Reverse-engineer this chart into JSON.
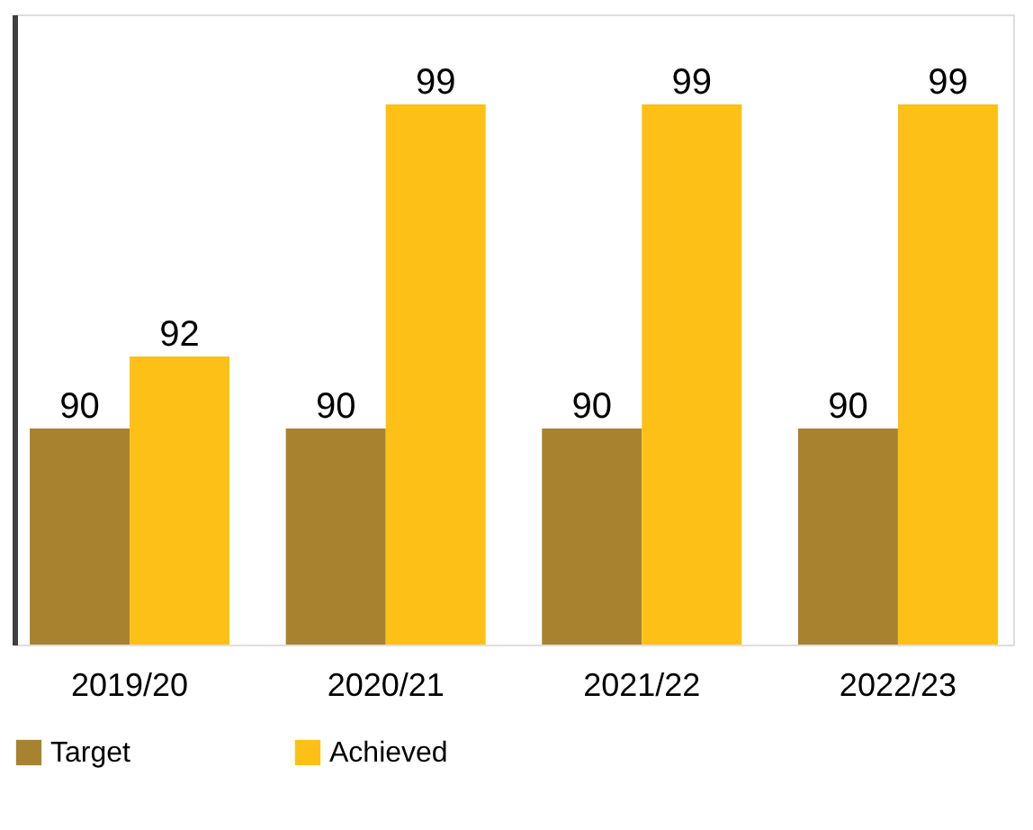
{
  "chart_data": {
    "type": "bar",
    "categories": [
      "2019/20",
      "2020/21",
      "2021/22",
      "2022/23"
    ],
    "series": [
      {
        "name": "Target",
        "color": "#a8822e",
        "values": [
          90,
          90,
          90,
          90
        ]
      },
      {
        "name": "Achieved",
        "color": "#fcc016",
        "values": [
          92,
          99,
          99,
          99
        ]
      }
    ],
    "ylim": [
      84,
      101.5
    ],
    "tick_labels": "x",
    "data_labels": true,
    "grid": false,
    "legend": "bottom left"
  }
}
